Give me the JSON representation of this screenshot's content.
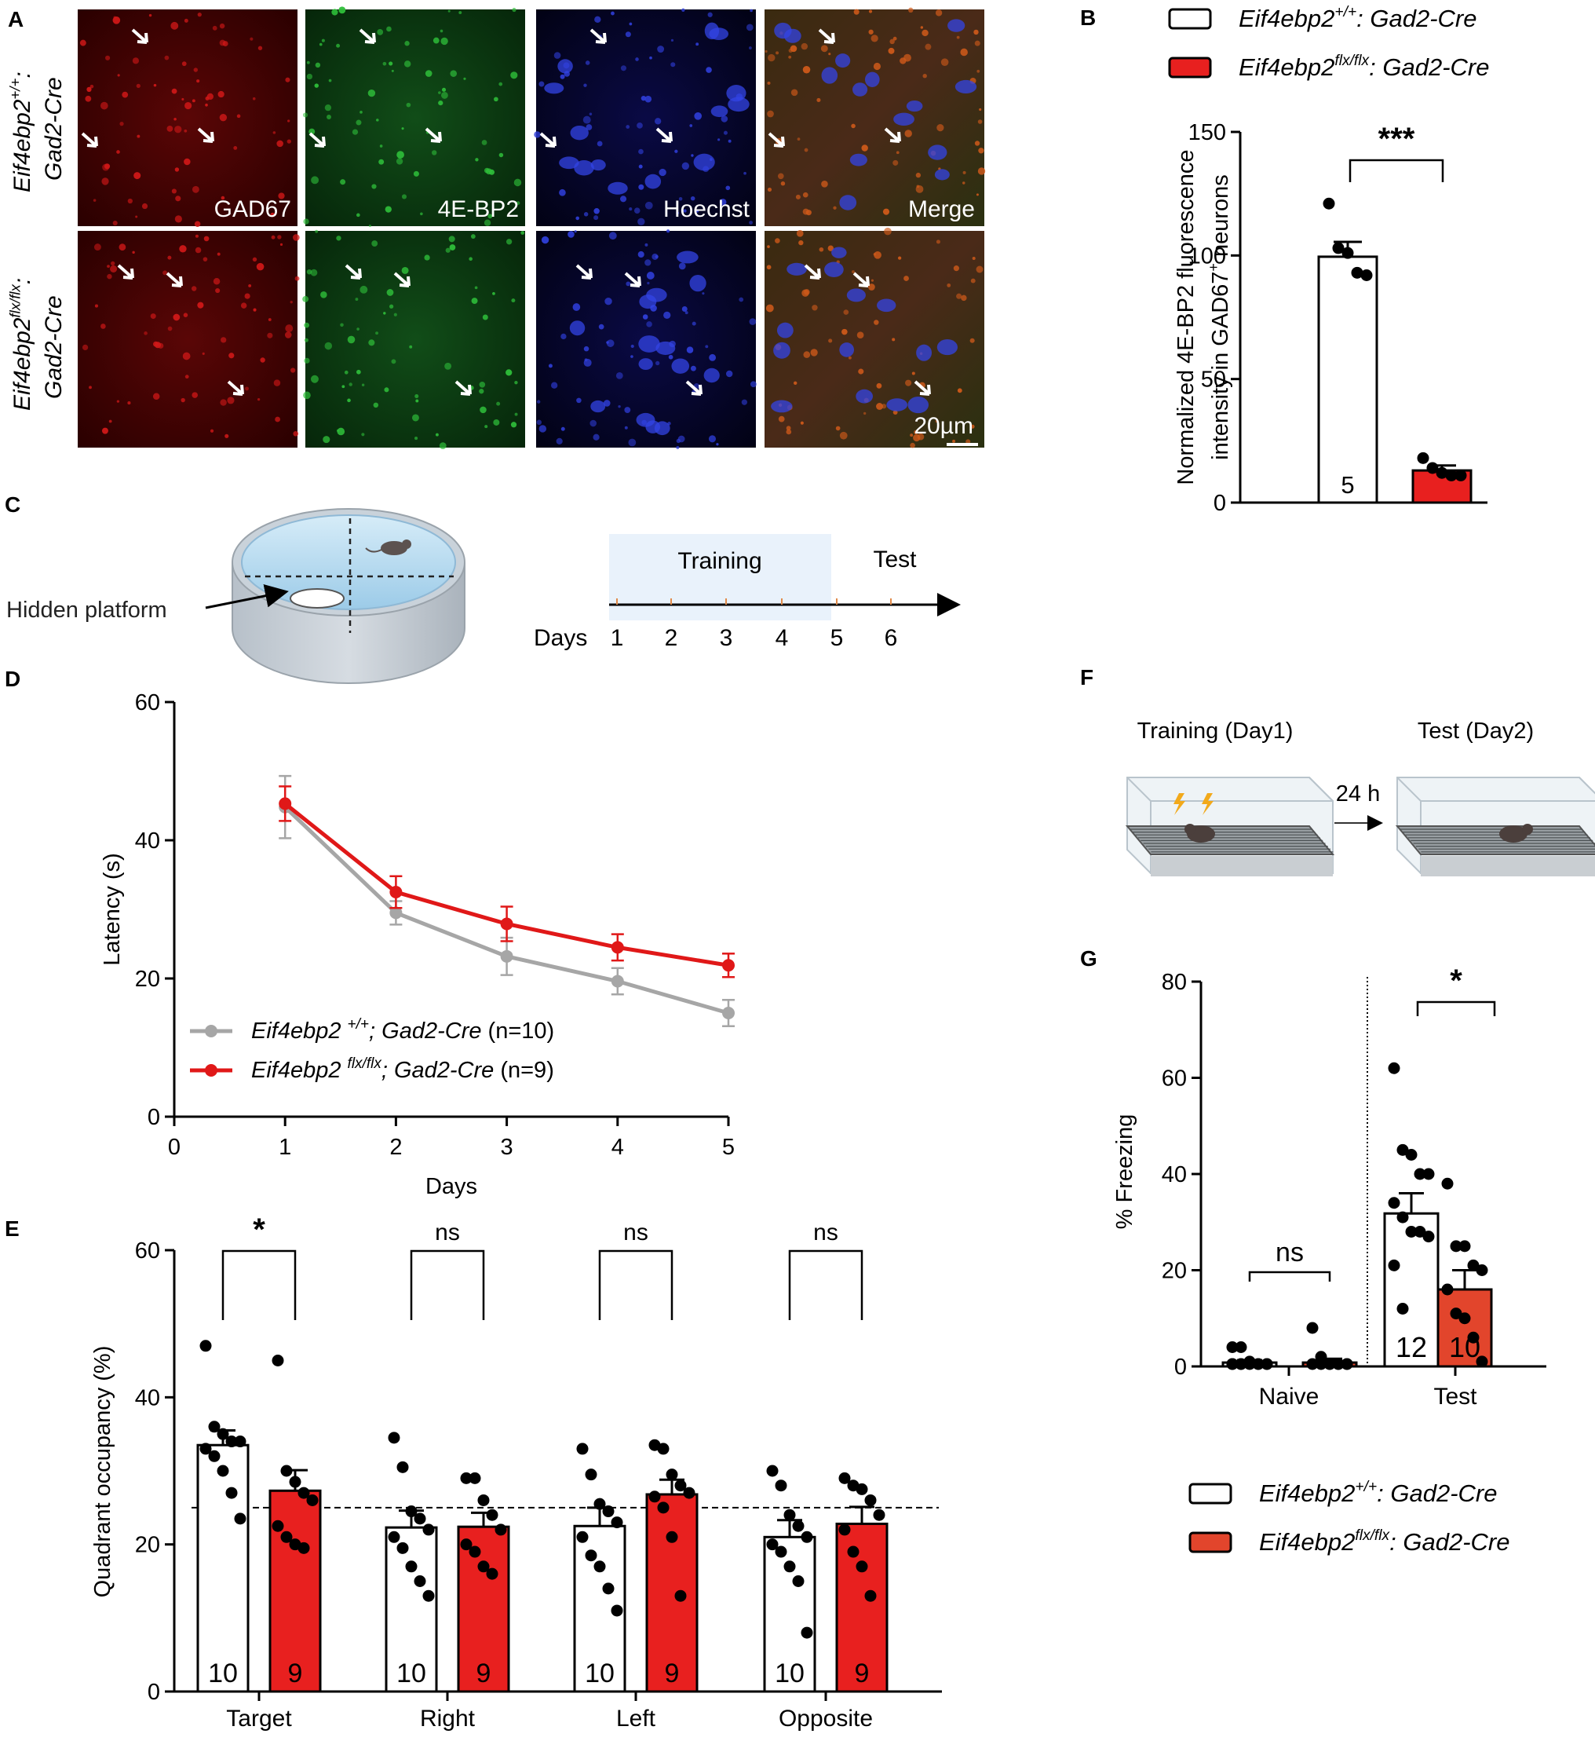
{
  "panel_letters": {
    "a": "A",
    "b": "B",
    "c": "C",
    "d": "D",
    "e": "E",
    "f": "F",
    "g": "G"
  },
  "colors": {
    "wt": "#ffffff",
    "ko": "#e8201f",
    "wt_line": "#a6a6a6",
    "ko_line": "#e01818",
    "bar_g_ko": "#e2452c",
    "text": "#000000"
  },
  "panel_a": {
    "row_labels": [
      {
        "gene": "Eif4ebp2",
        "sup": "+/+",
        "suffix": ":",
        "cre": "Gad2-Cre"
      },
      {
        "gene": "Eif4ebp2",
        "sup": "flx/flx",
        "suffix": ":",
        "cre": "Gad2-Cre"
      }
    ],
    "channel_labels": [
      "GAD67",
      "4E-BP2",
      "Hoechst",
      "Merge"
    ],
    "scale_bar_label": "20µm"
  },
  "legend_b": [
    {
      "gene": "Eif4ebp2",
      "sup": "+/+",
      "rest": ": Gad2-Cre",
      "color": "#ffffff"
    },
    {
      "gene": "Eif4ebp2",
      "sup": "flx/flx",
      "rest": ": Gad2-Cre",
      "color": "#e8201f"
    }
  ],
  "panel_c": {
    "hidden_platform_label": "Hidden platform",
    "timeline_training": "Training",
    "timeline_test": "Test",
    "timeline_days_label": "Days",
    "timeline_days": [
      "1",
      "2",
      "3",
      "4",
      "5",
      "6"
    ]
  },
  "panel_f": {
    "training_label": "Training (Day1)",
    "test_label": "Test (Day2)",
    "interval_label": "24 h"
  },
  "legend_g": [
    {
      "gene": "Eif4ebp2",
      "sup": "+/+",
      "rest": ": Gad2-Cre",
      "color": "#ffffff"
    },
    {
      "gene": "Eif4ebp2",
      "sup": "flx/flx",
      "rest": ": Gad2-Cre",
      "color": "#e2452c"
    }
  ],
  "chart_data": [
    {
      "id": "B",
      "type": "bar",
      "ylabel_lines": [
        "Normalized 4E-BP2 fluorescence",
        "intensity in GAD67",
        "+",
        " neurons"
      ],
      "ylim": [
        0,
        150
      ],
      "yticks": [
        "0",
        "50",
        "100",
        "150"
      ],
      "significance": "***",
      "groups": [
        {
          "value": 99.5,
          "sem": 6,
          "n": "5",
          "points": [
            121,
            103,
            101,
            93,
            92
          ]
        },
        {
          "value": 13,
          "sem": 2,
          "n": "",
          "points": [
            18,
            14,
            12,
            11,
            11
          ]
        }
      ]
    },
    {
      "id": "D",
      "type": "line",
      "xlabel": "Days",
      "ylabel": "Latency (s)",
      "xlim": [
        0,
        5
      ],
      "ylim": [
        0,
        60
      ],
      "xticks": [
        "0",
        "1",
        "2",
        "3",
        "4",
        "5"
      ],
      "yticks": [
        "0",
        "20",
        "40",
        "60"
      ],
      "x": [
        1,
        2,
        3,
        4,
        5
      ],
      "series": [
        {
          "name_gene": "Eif4ebp2",
          "name_sup": "+/+",
          "name_rest": "; Gad2-Cre",
          "name_n": " (n=10)",
          "values": [
            44.8,
            29.5,
            23.2,
            19.6,
            15.0
          ],
          "sem": [
            4.5,
            1.7,
            2.7,
            1.9,
            1.9
          ]
        },
        {
          "name_gene": "Eif4ebp2",
          "name_sup": "flx/flx",
          "name_rest": "; Gad2-Cre",
          "name_n": " (n=9)",
          "values": [
            45.3,
            32.5,
            27.9,
            24.5,
            21.9
          ],
          "sem": [
            2.5,
            2.3,
            2.5,
            1.9,
            1.7
          ]
        }
      ]
    },
    {
      "id": "E",
      "type": "bar",
      "ylabel": "Quadrant occupancy (%)",
      "ylim": [
        0,
        60
      ],
      "yticks": [
        "0",
        "20",
        "40",
        "60"
      ],
      "chance_level": 25,
      "categories": [
        "Target",
        "Right",
        "Left",
        "Opposite"
      ],
      "significance": [
        "*",
        "ns",
        "ns",
        "ns"
      ],
      "series": [
        {
          "n": "10",
          "values": [
            33.5,
            22.3,
            22.5,
            21.0
          ],
          "sem": [
            2.0,
            2.3,
            2.5,
            2.3
          ],
          "points": [
            [
              47,
              36,
              35,
              34,
              34,
              33,
              32,
              30,
              27,
              23.5
            ],
            [
              34.5,
              30.5,
              24.5,
              23.5,
              22,
              21,
              19.5,
              17,
              15,
              13
            ],
            [
              33,
              29.5,
              25.5,
              24.5,
              23,
              21,
              18.5,
              17,
              14,
              11
            ],
            [
              30,
              28,
              24,
              22.5,
              21,
              20,
              19,
              17,
              15,
              8
            ]
          ]
        },
        {
          "n": "9",
          "values": [
            27.3,
            22.4,
            26.8,
            22.8
          ],
          "sem": [
            2.8,
            1.9,
            2.0,
            2.3
          ],
          "points": [
            [
              45,
              30,
              28.5,
              27,
              26,
              22.5,
              21,
              20,
              19.5
            ],
            [
              29,
              29,
              26,
              24,
              22,
              20,
              19,
              17,
              16
            ],
            [
              33.5,
              33,
              29.5,
              28,
              27,
              26.5,
              25,
              21,
              13
            ],
            [
              29,
              28,
              27.5,
              26,
              24,
              22,
              19,
              17,
              13
            ]
          ]
        }
      ]
    },
    {
      "id": "G",
      "type": "bar",
      "ylabel": "% Freezing",
      "ylim": [
        0,
        80
      ],
      "yticks": [
        "0",
        "20",
        "40",
        "60",
        "80"
      ],
      "categories": [
        "Naive",
        "Test"
      ],
      "significance": [
        "ns",
        "*"
      ],
      "groups": [
        {
          "category": "Naive",
          "value": 0.8,
          "sem": 0.5,
          "n": "",
          "points": [
            4,
            4,
            1,
            0.5,
            0.5,
            0.5,
            0.5,
            0.5,
            0.5,
            0.5,
            0.5,
            0.5
          ]
        },
        {
          "category": "Naive",
          "value": 0.8,
          "sem": 0.8,
          "n": "",
          "points": [
            8,
            2,
            0.5,
            0.5,
            0.5,
            0.5,
            0.5,
            0.5,
            0.5,
            0.5
          ]
        },
        {
          "category": "Test",
          "value": 31.8,
          "sem": 4.2,
          "n": "12",
          "points": [
            62,
            45,
            44,
            40,
            40,
            34,
            31,
            28,
            28,
            27,
            21,
            12
          ]
        },
        {
          "category": "Test",
          "value": 16.0,
          "sem": 4.0,
          "n": "10",
          "points": [
            38,
            25,
            25,
            21,
            20,
            16,
            11,
            10,
            6,
            1
          ]
        }
      ]
    }
  ]
}
